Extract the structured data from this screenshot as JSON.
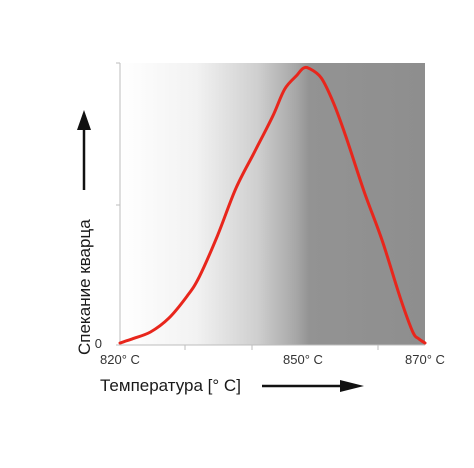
{
  "chart_data": {
    "type": "line",
    "title": "",
    "xlabel": "Температура [° C]",
    "ylabel": "Спекание кварца",
    "x_ticks": [
      {
        "value": 820,
        "label": "820° C"
      },
      {
        "value": 850,
        "label": "850° C"
      },
      {
        "value": 870,
        "label": "870° C"
      }
    ],
    "y_ticks": [
      {
        "value": 0,
        "label": "0"
      }
    ],
    "xlim": [
      820,
      870
    ],
    "ylim": [
      0,
      100
    ],
    "grid": false,
    "background": "gradient white to gray, rising with temperature",
    "series": [
      {
        "color": "#e8261c",
        "x": [
          820,
          822,
          825,
          828,
          831,
          833,
          836,
          839,
          842,
          845,
          847,
          849,
          850,
          851,
          853,
          855,
          857,
          860,
          863,
          866,
          868,
          869,
          870
        ],
        "y": [
          0,
          1.5,
          4,
          9,
          17,
          24,
          39,
          56,
          69,
          82,
          92,
          97,
          99.5,
          99.5,
          96,
          87,
          75,
          55,
          37,
          16,
          4,
          1.5,
          0
        ]
      }
    ]
  }
}
